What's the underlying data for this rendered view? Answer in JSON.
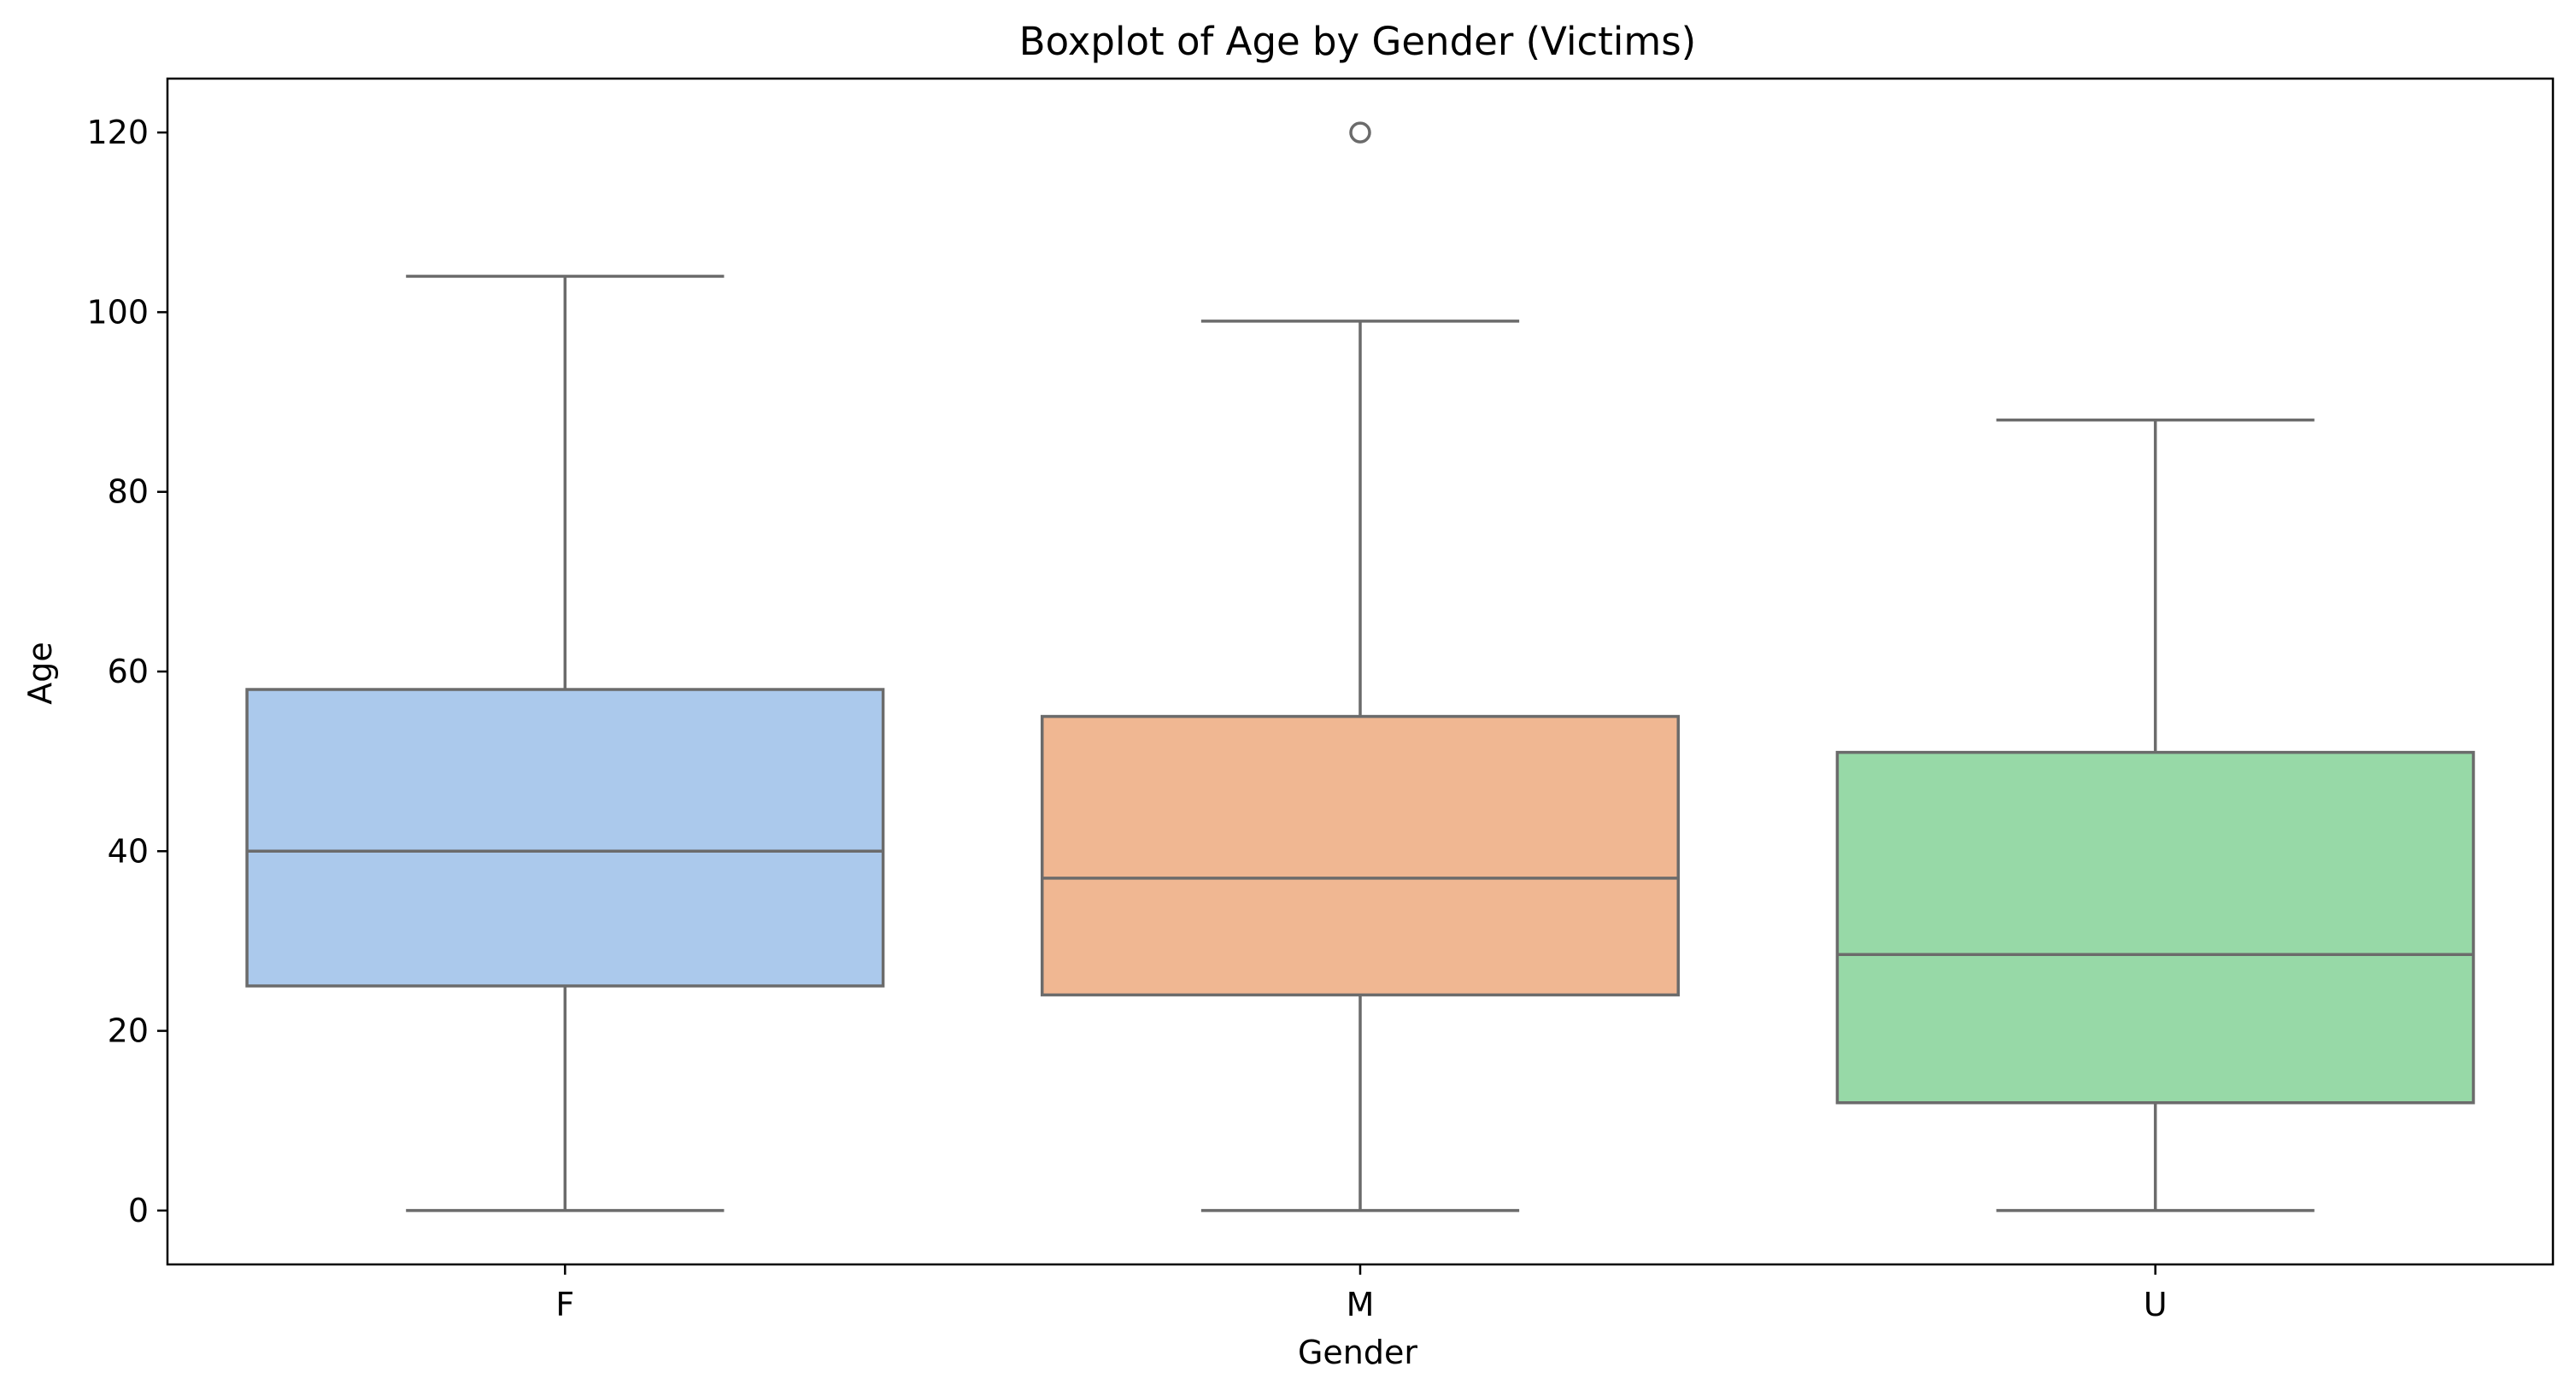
{
  "chart_data": {
    "type": "boxplot",
    "title": "Boxplot of Age by Gender (Victims)",
    "xlabel": "Gender",
    "ylabel": "Age",
    "ylim": [
      -6,
      126
    ],
    "yticks": [
      0,
      20,
      40,
      60,
      80,
      100,
      120
    ],
    "grid": false,
    "legend": "none",
    "categories": [
      "F",
      "M",
      "U"
    ],
    "boxes": [
      {
        "category": "F",
        "whisker_low": 0,
        "q1": 25,
        "median": 40,
        "q3": 58,
        "whisker_high": 104,
        "outliers": [],
        "color": "#abc9ec"
      },
      {
        "category": "M",
        "whisker_low": 0,
        "q1": 24,
        "median": 37,
        "q3": 55,
        "whisker_high": 99,
        "outliers": [
          120
        ],
        "color": "#f0b792"
      },
      {
        "category": "U",
        "whisker_low": 0,
        "q1": 12,
        "median": 28.5,
        "q3": 51,
        "whisker_high": 88,
        "outliers": [],
        "color": "#97d9a7"
      }
    ],
    "line_color": "#6b6b6b"
  }
}
